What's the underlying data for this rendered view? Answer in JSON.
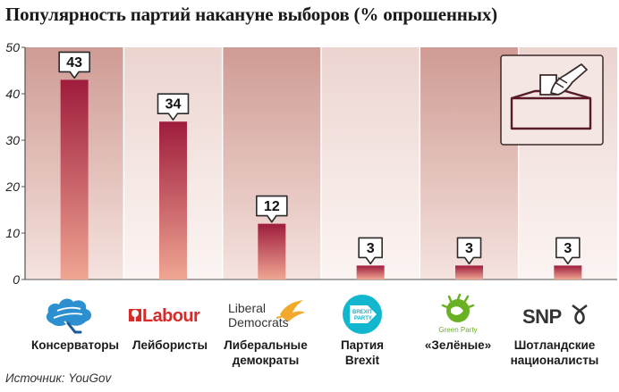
{
  "title": "Популярность партий накануне выборов (% опрошенных)",
  "source": "Источник: YouGov",
  "colors": {
    "bar_top": "#9e1c3c",
    "bar_bottom": "#f0a693",
    "bg_dark": "#d8aaa3",
    "bg_light": "#f7ebe8",
    "axis": "#555555"
  },
  "chart_data": {
    "type": "bar",
    "title": "Популярность партий накануне выборов (% опрошенных)",
    "categories": [
      "Консерваторы",
      "Лейбористы",
      "Либеральные демократы",
      "Партия Brexit",
      "«Зелёные»",
      "Шотландские националисты"
    ],
    "values": [
      43,
      34,
      12,
      3,
      3,
      3
    ],
    "data_labels": [
      "43",
      "34",
      "12",
      "3",
      "3",
      "3"
    ],
    "ylim": [
      0,
      50
    ],
    "yticks": [
      "0",
      "10",
      "20",
      "30",
      "40",
      "50"
    ],
    "xlabel": "",
    "ylabel": "",
    "grid": false,
    "legend": "none"
  },
  "parties": [
    {
      "name_lines": [
        "Консерваторы"
      ],
      "logo_icon": "conservative-tree-icon"
    },
    {
      "name_lines": [
        "Лейбористы"
      ],
      "logo_icon": "labour-rose-icon",
      "logo_text": "Labour"
    },
    {
      "name_lines": [
        "Либеральные",
        "демократы"
      ],
      "logo_icon": "libdem-bird-icon",
      "logo_text_1": "Liberal",
      "logo_text_2": "Democrats"
    },
    {
      "name_lines": [
        "Партия",
        "Brexit"
      ],
      "logo_icon": "brexit-party-arrow-icon",
      "logo_text_1": "BREXIT",
      "logo_text_2": "PARTY"
    },
    {
      "name_lines": [
        "«Зелёные»"
      ],
      "logo_icon": "green-party-globe-icon",
      "logo_text": "Green Party"
    },
    {
      "name_lines": [
        "Шотландские",
        "националисты"
      ],
      "logo_icon": "snp-thistle-icon",
      "logo_text": "SNP"
    }
  ],
  "ballot_icon": "ballot-box-icon"
}
